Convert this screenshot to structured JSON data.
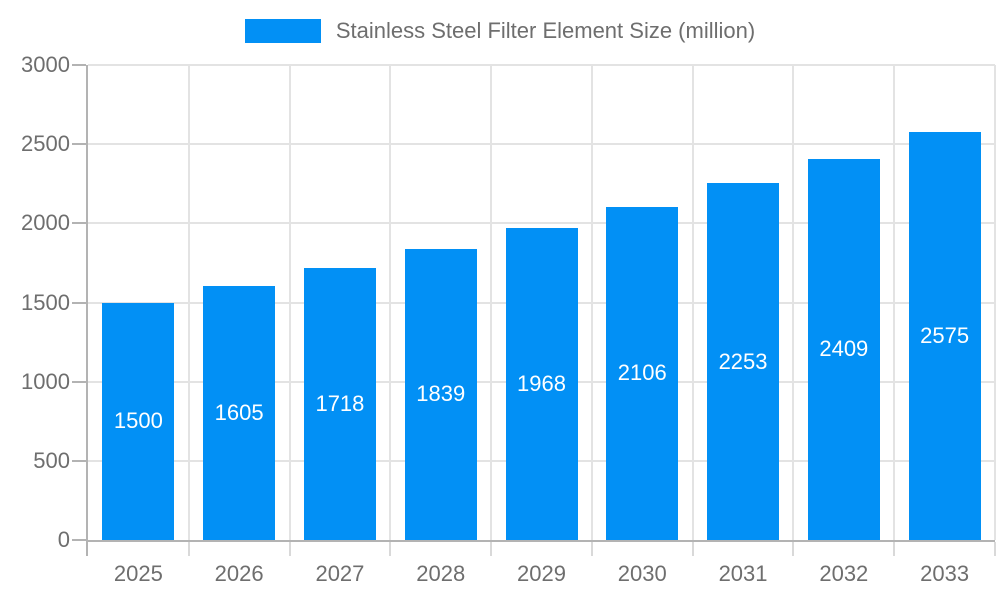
{
  "legend": {
    "label": "Stainless Steel Filter Element Size (million)"
  },
  "colors": {
    "bar": "#0290f5",
    "bar_label": "#ffffff",
    "axis_line": "#b3b3b3",
    "grid_line": "#e3e3e3",
    "x_tick": "#d9d9d9",
    "y_tick": "#b3b3b3",
    "text": "#6e6e6e",
    "background": "#ffffff"
  },
  "chart_data": {
    "type": "bar",
    "title": "Stainless Steel Filter Element Size (million)",
    "categories": [
      "2025",
      "2026",
      "2027",
      "2028",
      "2029",
      "2030",
      "2031",
      "2032",
      "2033"
    ],
    "values": [
      1500,
      1605,
      1718,
      1839,
      1968,
      2106,
      2253,
      2409,
      2575
    ],
    "series": [
      {
        "name": "Stainless Steel Filter Element Size (million)",
        "values": [
          1500,
          1605,
          1718,
          1839,
          1968,
          2106,
          2253,
          2409,
          2575
        ]
      }
    ],
    "xlabel": "",
    "ylabel": "",
    "ylim": [
      0,
      3000
    ],
    "yticks": [
      0,
      500,
      1000,
      1500,
      2000,
      2500,
      3000
    ],
    "grid": true,
    "legend_position": "top-center",
    "value_labels": "inside-center"
  }
}
